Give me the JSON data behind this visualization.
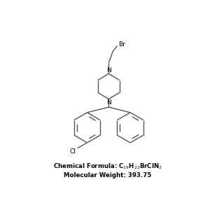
{
  "molecular_weight": "Molecular Weight: 393.75",
  "atom_Br": "Br",
  "atom_N": "N",
  "atom_Cl": "Cl",
  "line_color": "#555555",
  "text_color": "#000000",
  "bg_color": "#ffffff",
  "line_width": 1.0,
  "font_size_atoms": 6.5,
  "font_size_label": 6.2
}
